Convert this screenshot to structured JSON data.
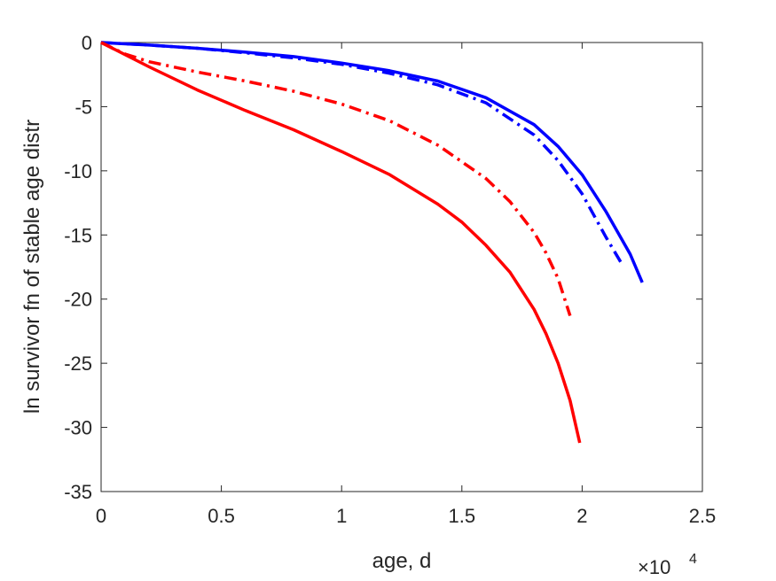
{
  "chart_data": {
    "type": "line",
    "title": "",
    "xlabel": "age, d",
    "ylabel": "ln survivor fn of stable age distr",
    "x_multiplier_label": "×10",
    "x_multiplier_exponent": "4",
    "xlim": [
      0,
      2.5
    ],
    "ylim": [
      -35,
      0
    ],
    "x_ticks": [
      "0",
      "0.5",
      "1",
      "1.5",
      "2",
      "2.5"
    ],
    "y_ticks": [
      "0",
      "-5",
      "-10",
      "-15",
      "-20",
      "-25",
      "-30",
      "-35"
    ],
    "grid": false,
    "legend": "none",
    "series": [
      {
        "color": "#0000ff",
        "style": "solid",
        "x": [
          0,
          0.2,
          0.4,
          0.6,
          0.8,
          1.0,
          1.2,
          1.4,
          1.6,
          1.8,
          1.9,
          2.0,
          2.1,
          2.2,
          2.25
        ],
        "y": [
          0,
          -0.2,
          -0.45,
          -0.75,
          -1.1,
          -1.6,
          -2.2,
          -3.0,
          -4.3,
          -6.4,
          -8.1,
          -10.3,
          -13.2,
          -16.5,
          -18.7
        ]
      },
      {
        "color": "#0000ff",
        "style": "dashdot",
        "x": [
          0,
          0.2,
          0.4,
          0.6,
          0.8,
          1.0,
          1.2,
          1.4,
          1.6,
          1.8,
          1.9,
          2.0,
          2.1,
          2.16
        ],
        "y": [
          0,
          -0.2,
          -0.45,
          -0.8,
          -1.2,
          -1.7,
          -2.4,
          -3.3,
          -4.7,
          -7.2,
          -9.2,
          -11.8,
          -15.2,
          -17.1
        ]
      },
      {
        "color": "#ff0000",
        "style": "dashdot",
        "x": [
          0,
          0.1,
          0.2,
          0.4,
          0.6,
          0.8,
          1.0,
          1.2,
          1.4,
          1.6,
          1.7,
          1.8,
          1.85,
          1.9,
          1.95
        ],
        "y": [
          0,
          -0.9,
          -1.5,
          -2.3,
          -3.0,
          -3.8,
          -4.8,
          -6.1,
          -8.0,
          -10.6,
          -12.4,
          -14.8,
          -16.4,
          -18.4,
          -21.3
        ]
      },
      {
        "color": "#ff0000",
        "style": "solid",
        "x": [
          0,
          0.2,
          0.4,
          0.6,
          0.8,
          1.0,
          1.2,
          1.4,
          1.5,
          1.6,
          1.7,
          1.8,
          1.85,
          1.9,
          1.95,
          1.99
        ],
        "y": [
          0,
          -1.9,
          -3.7,
          -5.3,
          -6.8,
          -8.5,
          -10.3,
          -12.6,
          -14.0,
          -15.8,
          -17.9,
          -20.8,
          -22.7,
          -25.0,
          -27.9,
          -31.2
        ]
      }
    ]
  }
}
